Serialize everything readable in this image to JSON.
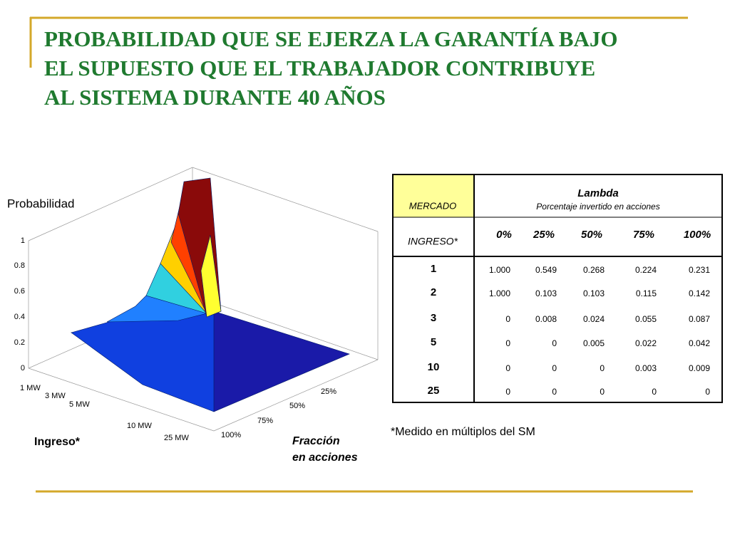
{
  "title_lines": [
    "PROBABILIDAD QUE SE  EJERZA LA  GARANTÍA BAJO",
    "EL SUPUESTO QUE EL TRABAJADOR CONTRIBUYE",
    "AL SISTEMA DURANTE 40 AÑOS"
  ],
  "plot": {
    "z_label": "Probabilidad",
    "z_ticks": [
      "0",
      "0.2",
      "0.4",
      "0.6",
      "0.8",
      "1"
    ],
    "x_label": "Ingreso*",
    "x_ticks": [
      "1 MW",
      "3 MW",
      "5 MW",
      "10 MW",
      "25 MW"
    ],
    "y_label_lines": [
      "Fracción",
      "en acciones"
    ],
    "y_ticks": [
      "25%",
      "50%",
      "75%",
      "100%"
    ]
  },
  "table": {
    "corner_top": "MERCADO",
    "corner_bottom": "INGRESO*",
    "group_title": "Lambda",
    "group_subtitle": "Porcentaje invertido en acciones",
    "columns": [
      "0%",
      "25%",
      "50%",
      "75%",
      "100%"
    ],
    "rows": [
      {
        "label": "1",
        "cells": [
          "1.000",
          "0.549",
          "0.268",
          "0.224",
          "0.231"
        ]
      },
      {
        "label": "2",
        "cells": [
          "1.000",
          "0.103",
          "0.103",
          "0.115",
          "0.142"
        ]
      },
      {
        "label": "3",
        "cells": [
          "0",
          "0.008",
          "0.024",
          "0.055",
          "0.087"
        ]
      },
      {
        "label": "5",
        "cells": [
          "0",
          "0",
          "0.005",
          "0.022",
          "0.042"
        ]
      },
      {
        "label": "10",
        "cells": [
          "0",
          "0",
          "0",
          "0.003",
          "0.009"
        ]
      },
      {
        "label": "25",
        "cells": [
          "0",
          "0",
          "0",
          "0",
          "0"
        ]
      }
    ]
  },
  "footnote": "*Medido en múltiplos del SM"
}
